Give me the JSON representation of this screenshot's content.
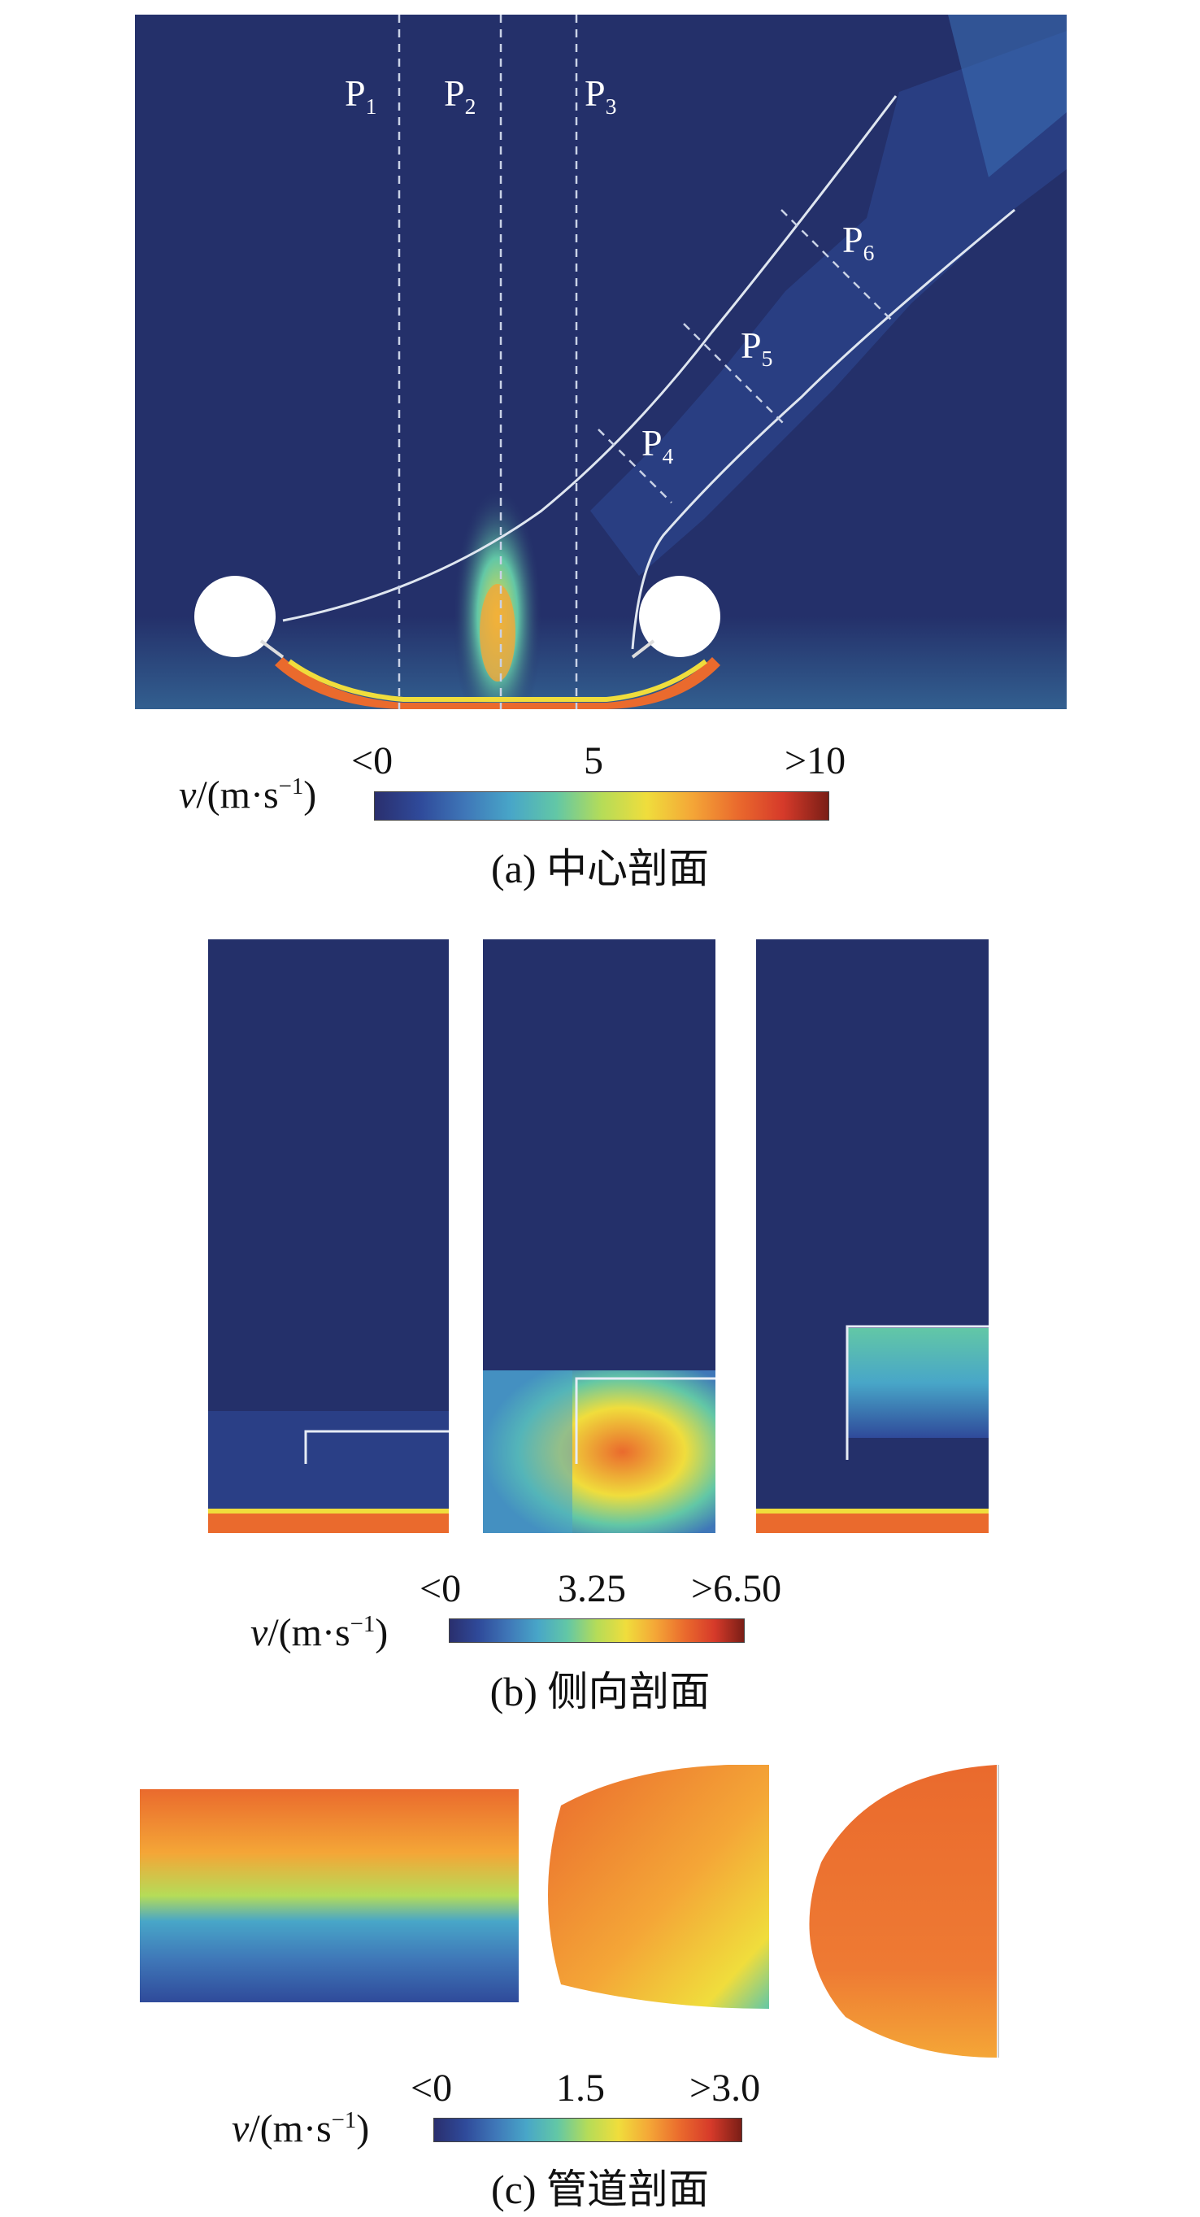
{
  "panel_a": {
    "planes": [
      "P1",
      "P2",
      "P3",
      "P4",
      "P5",
      "P6"
    ],
    "legend": {
      "var_label": "v/(m·s−1)",
      "ticks": [
        "<0",
        "5",
        ">10"
      ]
    },
    "caption": "(a) 中心剖面"
  },
  "panel_b": {
    "legend": {
      "var_label": "v/(m·s−1)",
      "ticks": [
        "<0",
        "3.25",
        ">6.50"
      ]
    },
    "caption": "(b) 侧向剖面"
  },
  "panel_c": {
    "legend": {
      "var_label": "v/(m·s−1)",
      "ticks": [
        "<0",
        "1.5",
        ">3.0"
      ]
    },
    "caption": "(c) 管道剖面"
  },
  "colors": {
    "background_field": "#24306a",
    "colormap": [
      "#2a2f6e",
      "#2f4a9a",
      "#3f77b8",
      "#48a6c8",
      "#62c7a6",
      "#b5dc58",
      "#f0dd3c",
      "#f4a637",
      "#ea6a2d",
      "#d63a2a",
      "#7a1e16"
    ]
  }
}
